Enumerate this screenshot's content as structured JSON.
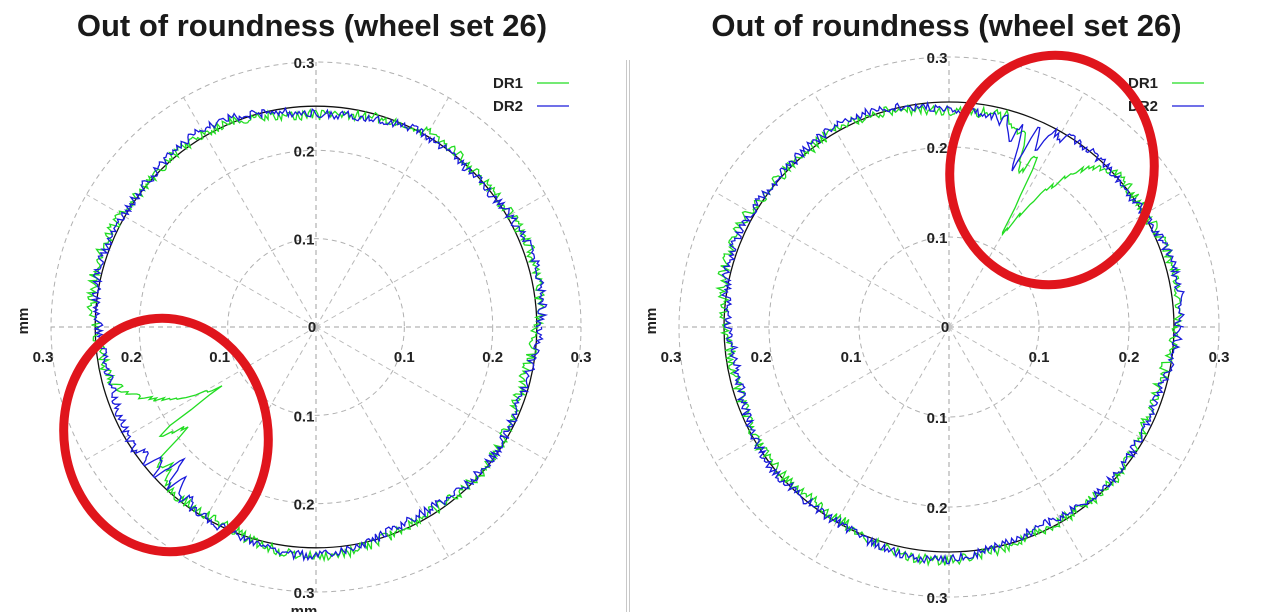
{
  "chart_data": [
    {
      "type": "polar-line",
      "title": "Out of roundness (wheel set 26)",
      "radial_unit": "mm",
      "radial_ticks": [
        "0.1",
        "0.2",
        "0.3"
      ],
      "axis_tick_labels": {
        "center": "0",
        "right": [
          "0.1",
          "0.2",
          "0.3"
        ],
        "left": [
          "0.1",
          "0.2",
          "0.3"
        ],
        "top": [
          "0.1",
          "0.2",
          "0.3"
        ],
        "bottom": [
          "0.1",
          "0.2",
          "0.3"
        ]
      },
      "rlim": [
        0,
        0.3
      ],
      "grid": true,
      "legend_position": "top-right",
      "reference_circle_radius": 0.25,
      "series": [
        {
          "name": "DR1",
          "color": "#22dd22",
          "anomaly": {
            "angle_deg": 212,
            "min_radius": 0.13,
            "width_deg": 20
          }
        },
        {
          "name": "DR2",
          "color": "#1a1adb",
          "anomaly": {
            "angle_deg": 225,
            "min_radius": 0.21,
            "width_deg": 18
          }
        }
      ],
      "highlight": {
        "shape": "ellipse",
        "color": "#e0151c",
        "region": "bottom-left"
      }
    },
    {
      "type": "polar-line",
      "title": "Out of roundness (wheel set 26)",
      "radial_unit": "mm",
      "radial_ticks": [
        "0.1",
        "0.2",
        "0.3"
      ],
      "axis_tick_labels": {
        "center": "0",
        "right": [
          "0.1",
          "0.2",
          "0.3"
        ],
        "left": [
          "0.1",
          "0.2",
          "0.3"
        ],
        "top": [
          "0.1",
          "0.2",
          "0.3"
        ],
        "bottom": [
          "0.1",
          "0.2",
          "0.3"
        ]
      },
      "rlim": [
        0,
        0.3
      ],
      "grid": true,
      "legend_position": "top-right",
      "reference_circle_radius": 0.25,
      "series": [
        {
          "name": "DR1",
          "color": "#22dd22",
          "anomaly": {
            "angle_deg": 60,
            "min_radius": 0.11,
            "width_deg": 18
          }
        },
        {
          "name": "DR2",
          "color": "#1a1adb",
          "anomaly": {
            "angle_deg": 68,
            "min_radius": 0.19,
            "width_deg": 14
          }
        }
      ],
      "highlight": {
        "shape": "ellipse",
        "color": "#e0151c",
        "region": "top-right"
      }
    }
  ]
}
